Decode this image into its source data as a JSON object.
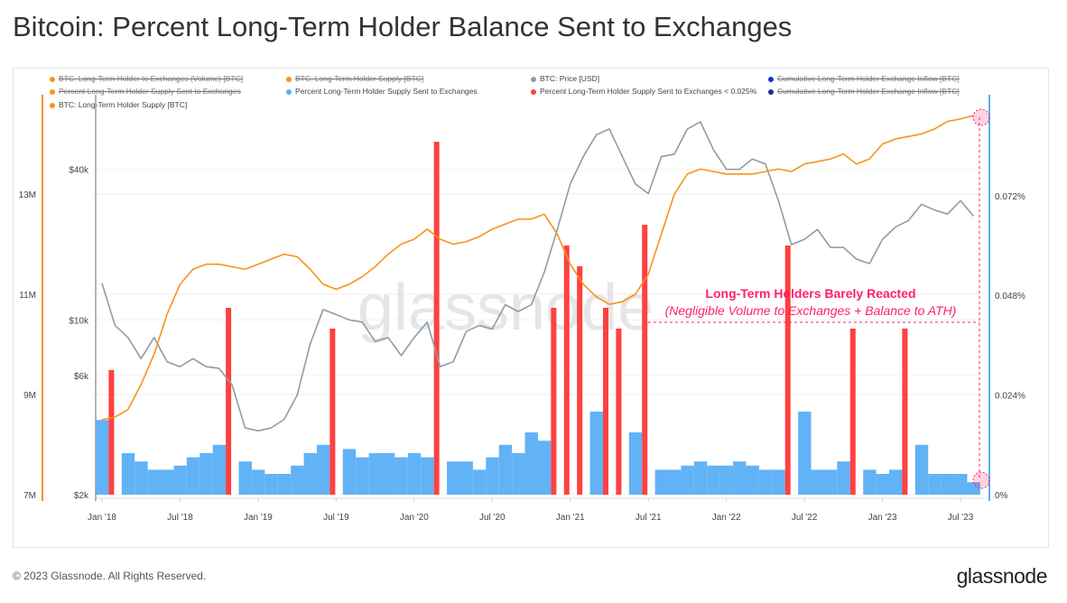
{
  "title": "Bitcoin: Percent Long-Term Holder Balance Sent to Exchanges",
  "footer": "© 2023 Glassnode. All Rights Reserved.",
  "logo": "glassnode",
  "watermark": "glassnode",
  "legend": [
    {
      "label": "BTC: Long-Term Holder to Exchanges (Volume) [BTC]",
      "color": "#f7931a",
      "hidden": true
    },
    {
      "label": "BTC: Long-Term Holder Supply [BTC]",
      "color": "#f7931a",
      "hidden": true
    },
    {
      "label": "BTC: Price [USD]",
      "color": "#8d9da6",
      "hidden": false
    },
    {
      "label": "Cumulative Long-Term Holder Exchange Inflow [BTC]",
      "color": "#1a2fd6",
      "hidden": true
    },
    {
      "label": "Percent Long-Term Holder Supply Sent to Exchanges",
      "color": "#f7931a",
      "hidden": true
    },
    {
      "label": "Percent Long-Term Holder Supply Sent to Exchanges",
      "color": "#5aaef5",
      "hidden": false
    },
    {
      "label": "Percent Long-Term Holder Supply Sent to Exchanges < 0.025%",
      "color": "#ff4040",
      "hidden": false
    },
    {
      "label": "Cumulative Long-Term Holder Exchange Inflow [BTC]",
      "color": "#2a2a9a",
      "hidden": true
    },
    {
      "label": "BTC: Long-Term Holder Supply [BTC]",
      "color": "#f7931a",
      "hidden": false
    }
  ],
  "annotation": {
    "title": "Long-Term Holders Barely Reacted",
    "subtitle": "(Negligible Volume to Exchanges + Balance to ATH)",
    "color": "#ff1f6b"
  },
  "chart_data": {
    "type": "line",
    "x_ticks": [
      "Jan '18",
      "Jul '18",
      "Jan '19",
      "Jul '19",
      "Jan '20",
      "Jul '20",
      "Jan '21",
      "Jul '21",
      "Jan '22",
      "Jul '22",
      "Jan '23",
      "Jul '23"
    ],
    "left_axis": {
      "ticks": [
        "7M",
        "9M",
        "11M",
        "13M"
      ],
      "values": [
        7,
        9,
        11,
        13
      ],
      "unit": "M BTC",
      "color": "#f7931a"
    },
    "price_axis": {
      "ticks": [
        "$2k",
        "$6k",
        "$10k",
        "$40k"
      ],
      "values": [
        2000,
        6000,
        10000,
        40000
      ],
      "scale": "log"
    },
    "right_axis": {
      "ticks": [
        "0%",
        "0.024%",
        "0.048%",
        "0.072%"
      ],
      "values": [
        0,
        0.024,
        0.048,
        0.072
      ],
      "color": "#5aaef5"
    },
    "x": [
      "2018-01",
      "2018-02",
      "2018-03",
      "2018-04",
      "2018-05",
      "2018-06",
      "2018-07",
      "2018-08",
      "2018-09",
      "2018-10",
      "2018-11",
      "2018-12",
      "2019-01",
      "2019-02",
      "2019-03",
      "2019-04",
      "2019-05",
      "2019-06",
      "2019-07",
      "2019-08",
      "2019-09",
      "2019-10",
      "2019-11",
      "2019-12",
      "2020-01",
      "2020-02",
      "2020-03",
      "2020-04",
      "2020-05",
      "2020-06",
      "2020-07",
      "2020-08",
      "2020-09",
      "2020-10",
      "2020-11",
      "2020-12",
      "2021-01",
      "2021-02",
      "2021-03",
      "2021-04",
      "2021-05",
      "2021-06",
      "2021-07",
      "2021-08",
      "2021-09",
      "2021-10",
      "2021-11",
      "2021-12",
      "2022-01",
      "2022-02",
      "2022-03",
      "2022-04",
      "2022-05",
      "2022-06",
      "2022-07",
      "2022-08",
      "2022-09",
      "2022-10",
      "2022-11",
      "2022-12",
      "2023-01",
      "2023-02",
      "2023-03",
      "2023-04",
      "2023-05",
      "2023-06",
      "2023-07",
      "2023-08"
    ],
    "series": [
      {
        "name": "BTC: Price [USD]",
        "color": "#8d9da6",
        "values": [
          14000,
          9500,
          8500,
          7000,
          8500,
          6800,
          6500,
          7000,
          6500,
          6400,
          5500,
          3700,
          3600,
          3700,
          4000,
          5000,
          8000,
          11000,
          10500,
          10000,
          9800,
          8200,
          8500,
          7200,
          8500,
          9800,
          6500,
          6800,
          9000,
          9500,
          9200,
          11500,
          10800,
          11500,
          15500,
          23000,
          35000,
          45000,
          55000,
          58000,
          45000,
          35000,
          32000,
          45000,
          46000,
          58000,
          62000,
          48000,
          40000,
          40000,
          44000,
          42000,
          30000,
          20000,
          21000,
          23000,
          19500,
          19500,
          17500,
          16800,
          21000,
          23500,
          25000,
          29000,
          27500,
          26500,
          30000,
          26000
        ]
      },
      {
        "name": "BTC: Long-Term Holder Supply [BTC]",
        "color": "#f7931a",
        "values": [
          8.5,
          8.55,
          8.7,
          9.2,
          9.8,
          10.6,
          11.2,
          11.5,
          11.6,
          11.6,
          11.55,
          11.5,
          11.6,
          11.7,
          11.8,
          11.75,
          11.5,
          11.2,
          11.1,
          11.2,
          11.35,
          11.55,
          11.8,
          12.0,
          12.1,
          12.3,
          12.1,
          12.0,
          12.05,
          12.15,
          12.3,
          12.4,
          12.5,
          12.5,
          12.6,
          12.2,
          11.6,
          11.2,
          10.95,
          10.8,
          10.85,
          11.0,
          11.4,
          12.2,
          13.0,
          13.4,
          13.5,
          13.45,
          13.4,
          13.4,
          13.4,
          13.45,
          13.5,
          13.45,
          13.6,
          13.65,
          13.7,
          13.8,
          13.6,
          13.7,
          14.0,
          14.1,
          14.15,
          14.2,
          14.3,
          14.45,
          14.5,
          14.57
        ]
      },
      {
        "name": "Percent Long-Term Holder Supply Sent to Exchanges",
        "color": "#5aaef5",
        "highlight_color": "#ff4040",
        "highlight_threshold": 0.025,
        "values": [
          0.018,
          0.03,
          0.01,
          0.008,
          0.006,
          0.006,
          0.007,
          0.009,
          0.01,
          0.012,
          0.045,
          0.008,
          0.006,
          0.005,
          0.005,
          0.007,
          0.01,
          0.012,
          0.04,
          0.011,
          0.009,
          0.01,
          0.01,
          0.009,
          0.01,
          0.009,
          0.085,
          0.008,
          0.008,
          0.006,
          0.009,
          0.012,
          0.01,
          0.015,
          0.013,
          0.045,
          0.06,
          0.055,
          0.02,
          0.045,
          0.04,
          0.015,
          0.065,
          0.006,
          0.006,
          0.007,
          0.008,
          0.007,
          0.007,
          0.008,
          0.007,
          0.006,
          0.006,
          0.06,
          0.02,
          0.006,
          0.006,
          0.008,
          0.04,
          0.006,
          0.005,
          0.006,
          0.04,
          0.012,
          0.005,
          0.005,
          0.005,
          0.003
        ]
      }
    ]
  }
}
